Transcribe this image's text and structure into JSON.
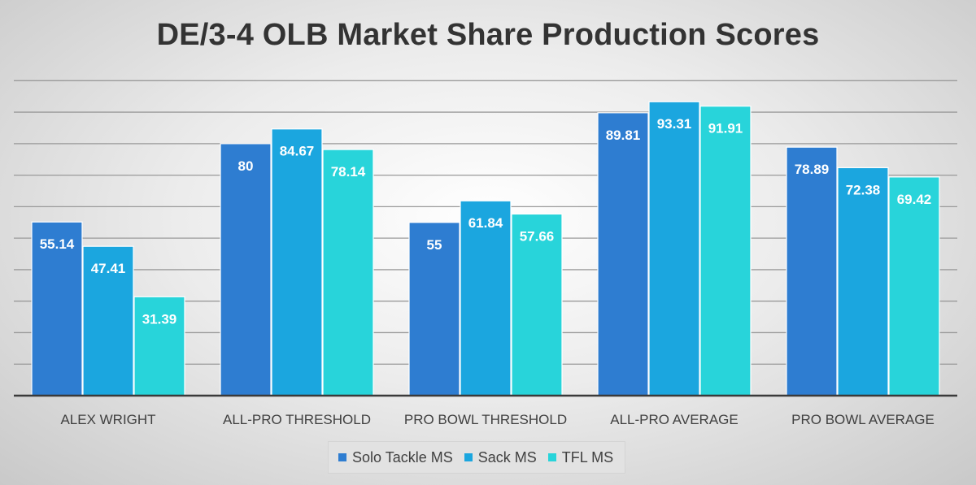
{
  "chart_data": {
    "type": "bar",
    "title": "DE/3-4 OLB Market Share Production Scores",
    "categories": [
      "ALEX WRIGHT",
      "ALL-PRO THRESHOLD",
      "PRO BOWL THRESHOLD",
      "ALL-PRO AVERAGE",
      "PRO BOWL AVERAGE"
    ],
    "series": [
      {
        "name": "Solo Tackle MS",
        "color": "#2e7dd1",
        "values": [
          55.14,
          80,
          55,
          89.81,
          78.89
        ],
        "labels": [
          "55.14",
          "80",
          "55",
          "89.81",
          "78.89"
        ]
      },
      {
        "name": "Sack MS",
        "color": "#1ba6df",
        "values": [
          47.41,
          84.67,
          61.84,
          93.31,
          72.38
        ],
        "labels": [
          "47.41",
          "84.67",
          "61.84",
          "93.31",
          "72.38"
        ]
      },
      {
        "name": "TFL MS",
        "color": "#28d4da",
        "values": [
          31.39,
          78.14,
          57.66,
          91.91,
          69.42
        ],
        "labels": [
          "31.39",
          "78.14",
          "57.66",
          "91.91",
          "69.42"
        ]
      }
    ],
    "ylim": [
      0,
      100
    ],
    "grid": true,
    "legend_position": "bottom",
    "xlabel": "",
    "ylabel": ""
  }
}
